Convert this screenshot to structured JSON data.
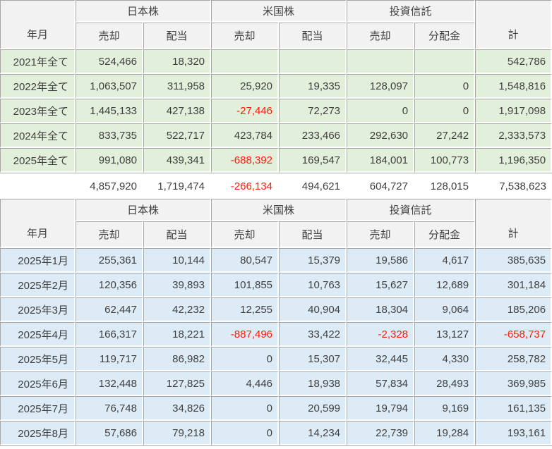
{
  "colors": {
    "header_bg": "#f2f2f2",
    "year_row_bg": "#e2efda",
    "month_row_bg": "#ddebf7",
    "border": "#a6a6a6",
    "negative": "#ff1a0a",
    "text": "#3f3f3f"
  },
  "header": {
    "ym": "年月",
    "total": "計",
    "groups": [
      {
        "label": "日本株",
        "sub1": "売却",
        "sub2": "配当"
      },
      {
        "label": "米国株",
        "sub1": "売却",
        "sub2": "配当"
      },
      {
        "label": "投資信託",
        "sub1": "売却",
        "sub2": "分配金"
      }
    ]
  },
  "yearly": {
    "rows": [
      {
        "label": "2021年全て",
        "v": [
          "524,466",
          "18,320",
          "",
          "",
          "",
          "",
          "542,786"
        ]
      },
      {
        "label": "2022年全て",
        "v": [
          "1,063,507",
          "311,958",
          "25,920",
          "19,335",
          "128,097",
          "0",
          "1,548,816"
        ]
      },
      {
        "label": "2023年全て",
        "v": [
          "1,445,133",
          "427,138",
          "-27,446",
          "72,273",
          "0",
          "0",
          "1,917,098"
        ]
      },
      {
        "label": "2024年全て",
        "v": [
          "833,735",
          "522,717",
          "423,784",
          "233,466",
          "292,630",
          "27,242",
          "2,333,573"
        ]
      },
      {
        "label": "2025年全て",
        "v": [
          "991,080",
          "439,341",
          "-688,392",
          "169,547",
          "184,001",
          "100,773",
          "1,196,350"
        ]
      }
    ],
    "totals": [
      "4,857,920",
      "1,719,474",
      "-266,134",
      "494,621",
      "604,727",
      "128,015",
      "7,538,623"
    ]
  },
  "monthly": {
    "rows": [
      {
        "label": "2025年1月",
        "v": [
          "255,361",
          "10,144",
          "80,547",
          "15,379",
          "19,586",
          "4,617",
          "385,635"
        ]
      },
      {
        "label": "2025年2月",
        "v": [
          "120,356",
          "39,893",
          "101,855",
          "10,763",
          "15,627",
          "12,689",
          "301,184"
        ]
      },
      {
        "label": "2025年3月",
        "v": [
          "62,447",
          "42,232",
          "12,255",
          "40,904",
          "18,304",
          "9,064",
          "185,206"
        ]
      },
      {
        "label": "2025年4月",
        "v": [
          "166,317",
          "18,221",
          "-887,496",
          "33,422",
          "-2,328",
          "13,127",
          "-658,737"
        ]
      },
      {
        "label": "2025年5月",
        "v": [
          "119,717",
          "86,982",
          "0",
          "15,307",
          "32,445",
          "4,330",
          "258,782"
        ]
      },
      {
        "label": "2025年6月",
        "v": [
          "132,448",
          "127,825",
          "4,446",
          "18,938",
          "57,834",
          "28,493",
          "369,985"
        ]
      },
      {
        "label": "2025年7月",
        "v": [
          "76,748",
          "34,826",
          "0",
          "20,599",
          "19,794",
          "9,169",
          "161,135"
        ]
      },
      {
        "label": "2025年8月",
        "v": [
          "57,686",
          "79,218",
          "0",
          "14,234",
          "22,739",
          "19,284",
          "193,161"
        ]
      }
    ]
  }
}
